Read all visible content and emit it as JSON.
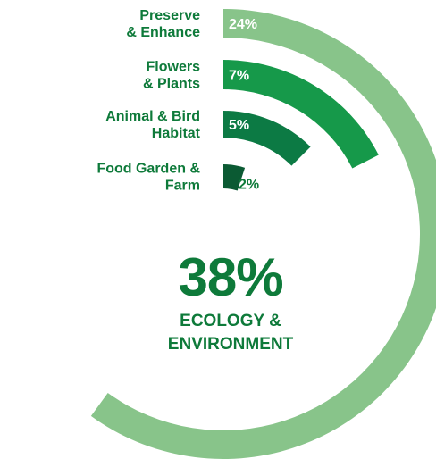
{
  "chart_data": {
    "type": "radial-bar",
    "total": {
      "value": "38%",
      "label_line1": "ECOLOGY &",
      "label_line2": "ENVIRONMENT"
    },
    "categories": [
      {
        "label_line1": "Preserve",
        "label_line2": "& Enhance",
        "value": 24,
        "value_label": "24%",
        "color": "#88c48a"
      },
      {
        "label_line1": "Flowers",
        "label_line2": "& Plants",
        "value": 7,
        "value_label": "7%",
        "color": "#16994a"
      },
      {
        "label_line1": "Animal & Bird",
        "label_line2": "Habitat",
        "value": 5,
        "value_label": "5%",
        "color": "#0c7a44"
      },
      {
        "label_line1": "Food Garden &",
        "label_line2": "Farm",
        "value": 2,
        "value_label": "2%",
        "color": "#0b5a33"
      }
    ]
  },
  "colors": {
    "text": "#0e7a3a",
    "value_text_inside": "#ffffff"
  }
}
